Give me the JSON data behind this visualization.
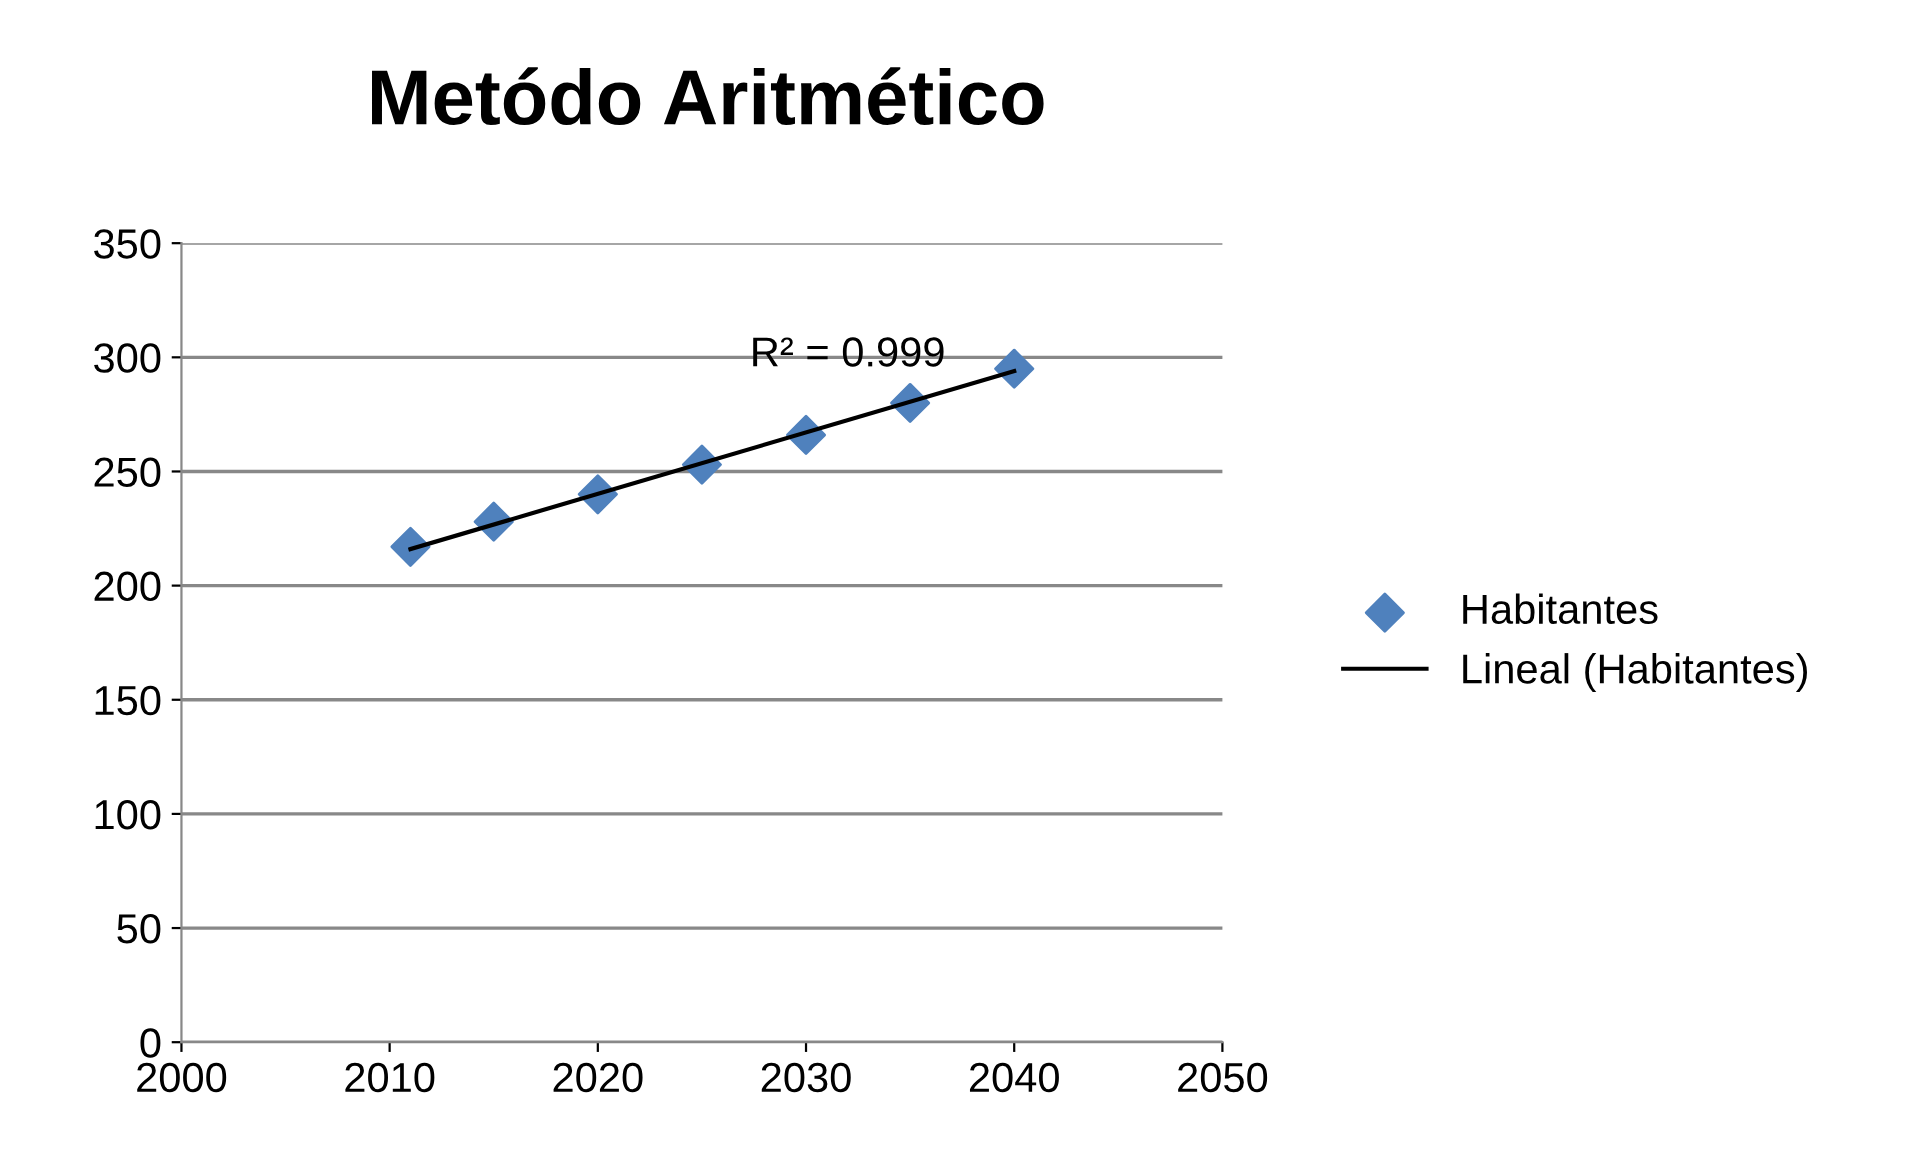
{
  "chart_data": {
    "type": "scatter",
    "title": "Metódo Aritmético",
    "series": [
      {
        "name": "Habitantes",
        "color": "#4f81bd",
        "marker": "diamond",
        "x": [
          2011,
          2015,
          2020,
          2025,
          2030,
          2035,
          2040
        ],
        "values": [
          217,
          228,
          240,
          253,
          266,
          280,
          295
        ]
      },
      {
        "name": "Lineal (Habitantes)",
        "type": "line",
        "color": "#000000",
        "marker": "none",
        "line_style": "solid",
        "x": [
          2011,
          2040
        ],
        "values": [
          216,
          294
        ]
      }
    ],
    "annotations": [
      "R² = 0.999"
    ],
    "xlim": [
      2000,
      2050
    ],
    "xticks": [
      2000,
      2010,
      2020,
      2030,
      2040,
      2050
    ],
    "ylim": [
      0,
      350
    ],
    "yticks": [
      0,
      50,
      100,
      150,
      200,
      250,
      300,
      350
    ],
    "grid": "y",
    "legend": "right"
  }
}
